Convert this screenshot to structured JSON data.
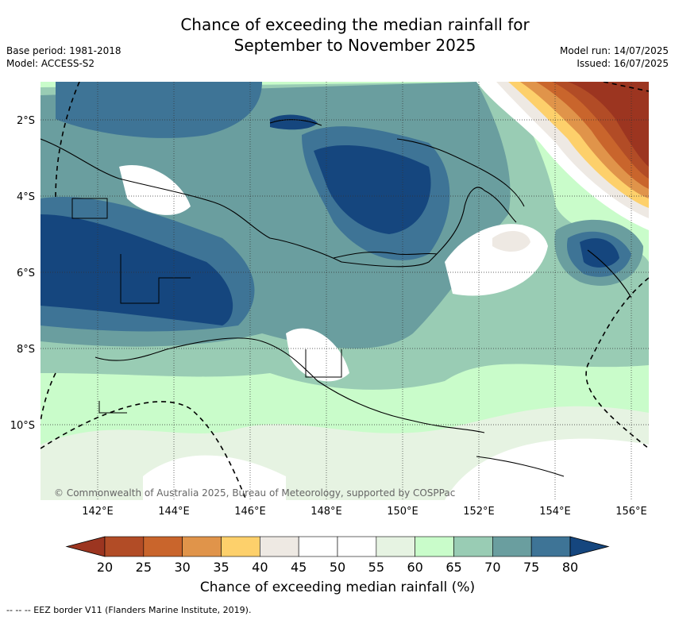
{
  "title_line1": "Chance of exceeding the median rainfall for",
  "title_line2": "September to November 2025",
  "base_period": "Base period: 1981-2018",
  "model": "Model: ACCESS-S2",
  "model_run": "Model run: 14/07/2025",
  "issued": "Issued: 16/07/2025",
  "copyright": "© Commonwealth of Australia 2025, Bureau of Meteorology, supported by COSPPac",
  "lon_labels": [
    "142°E",
    "144°E",
    "146°E",
    "148°E",
    "150°E",
    "152°E",
    "154°E",
    "156°E"
  ],
  "lat_labels": [
    "2°S",
    "4°S",
    "6°S",
    "8°S",
    "10°S"
  ],
  "colorbar": {
    "ticks": [
      "20",
      "25",
      "30",
      "35",
      "40",
      "45",
      "50",
      "55",
      "60",
      "65",
      "70",
      "75",
      "80"
    ],
    "colors": [
      "#9c3520",
      "#b24c26",
      "#c9652c",
      "#e0944a",
      "#fdd06b",
      "#eee9e3",
      "#ffffff",
      "#ffffff",
      "#e6f3e2",
      "#c9fcca",
      "#99ccb4",
      "#6a9e9f",
      "#3e7496",
      "#15467e"
    ],
    "label": "Chance of exceeding median rainfall (%)"
  },
  "footer": "--  --  -- EEZ border V11 (Flanders Marine Institute, 2019)."
}
